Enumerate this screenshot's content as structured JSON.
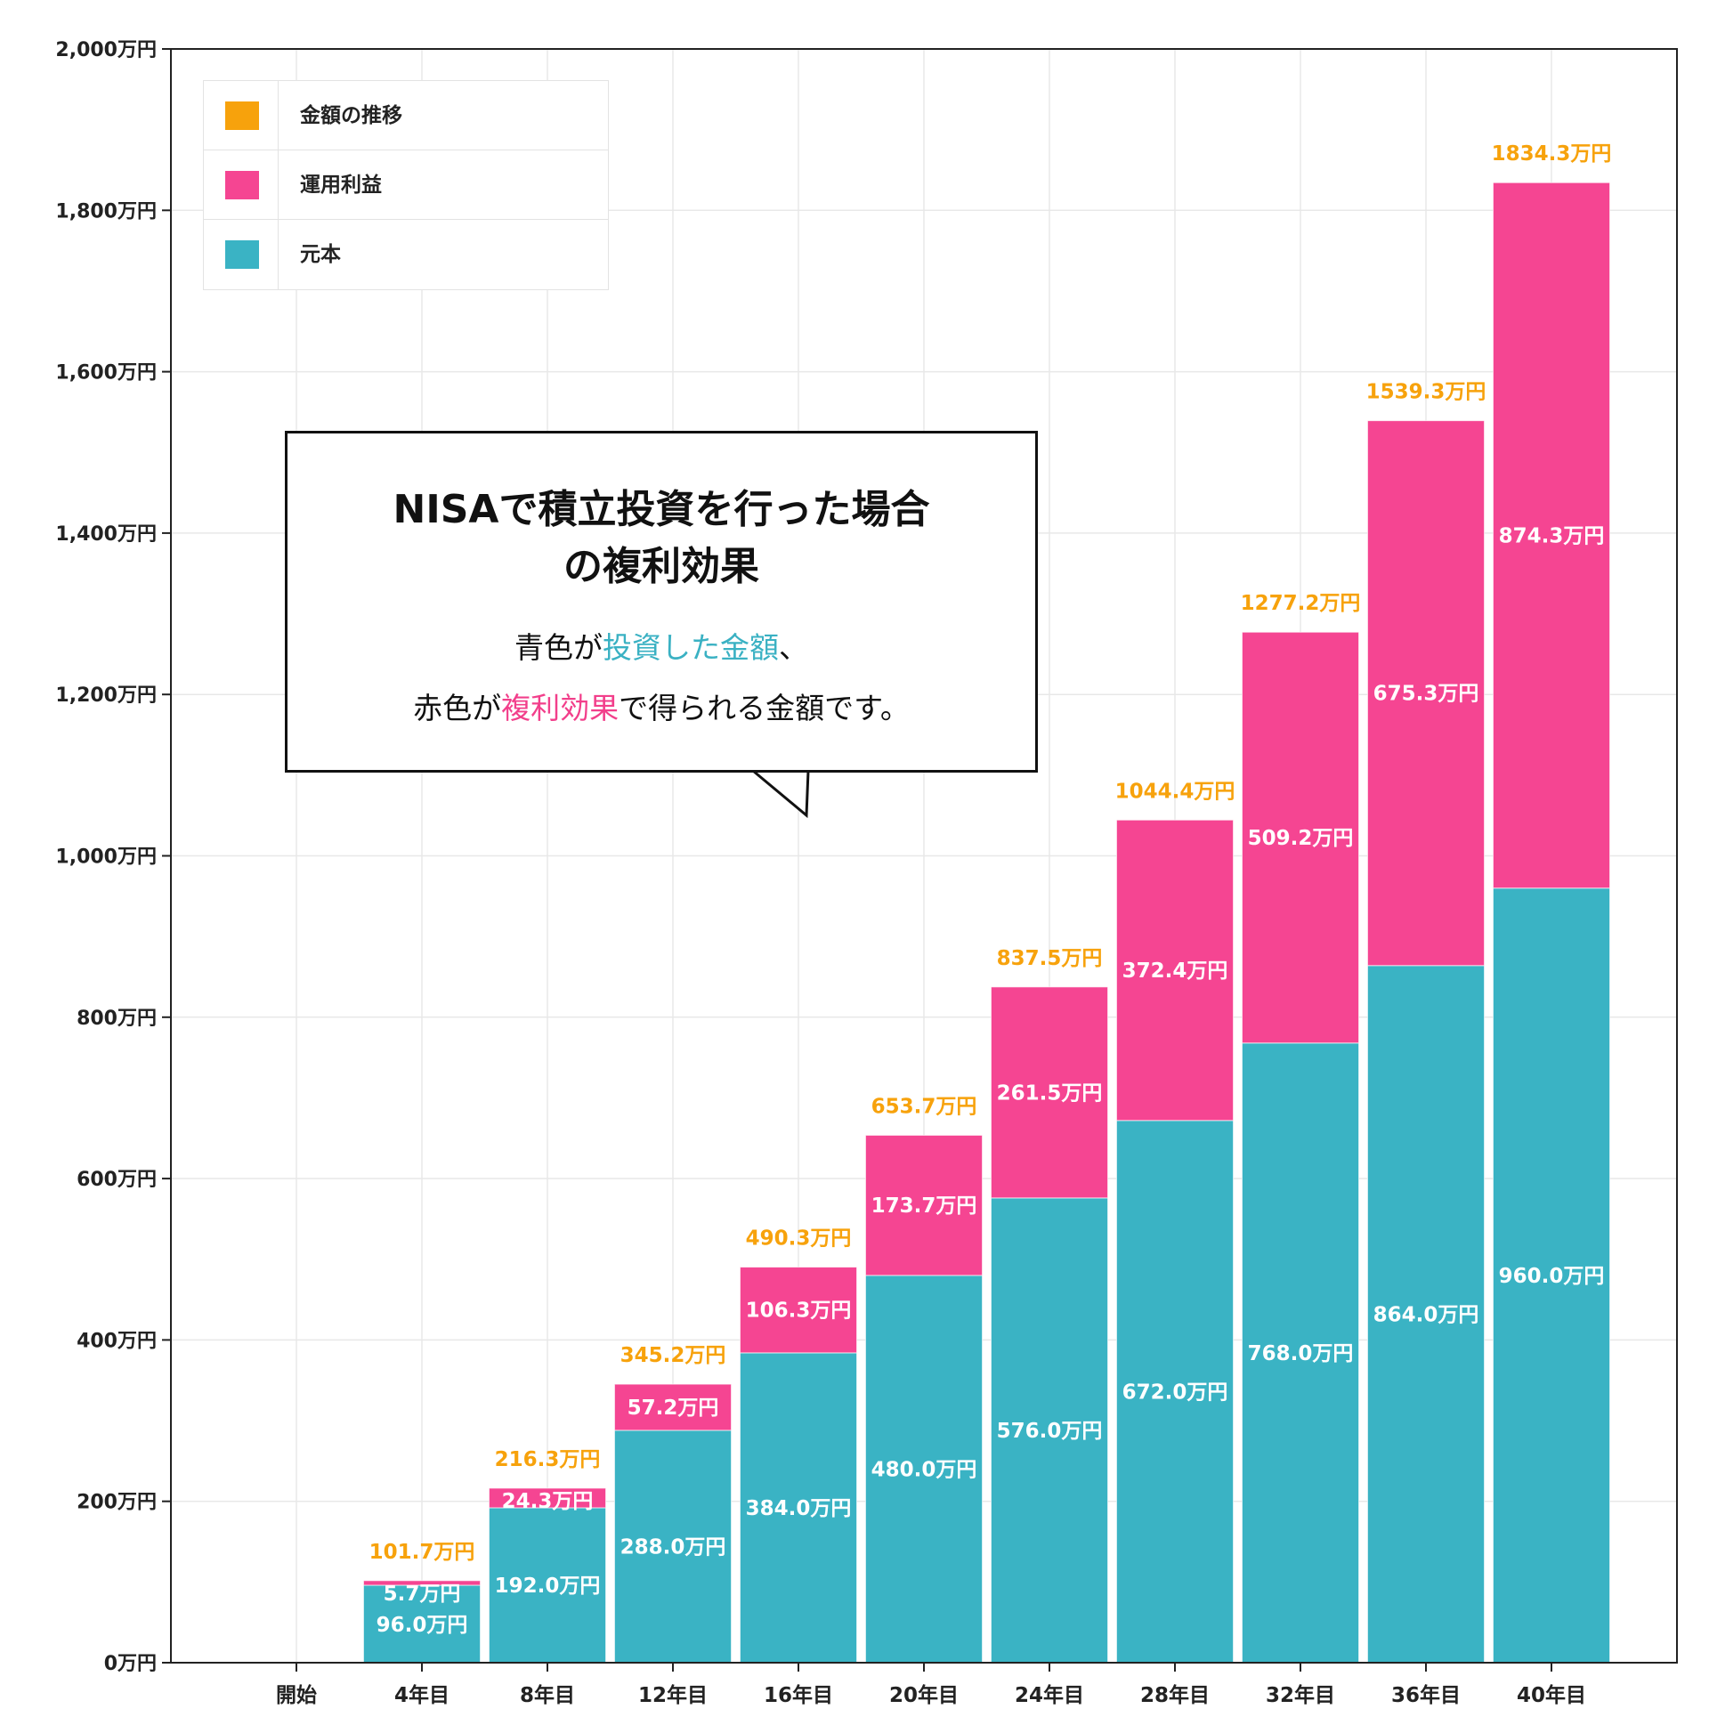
{
  "chart_data": {
    "type": "bar",
    "stacked": true,
    "categories": [
      "開始",
      "4年目",
      "8年目",
      "12年目",
      "16年目",
      "20年目",
      "24年目",
      "28年目",
      "32年目",
      "36年目",
      "40年目"
    ],
    "series": [
      {
        "name": "元本",
        "color": "#3ab3c4",
        "values": [
          0,
          96.0,
          192.0,
          288.0,
          384.0,
          480.0,
          576.0,
          672.0,
          768.0,
          864.0,
          960.0
        ],
        "labels": [
          "",
          "96.0万円",
          "192.0万円",
          "288.0万円",
          "384.0万円",
          "480.0万円",
          "576.0万円",
          "672.0万円",
          "768.0万円",
          "864.0万円",
          "960.0万円"
        ]
      },
      {
        "name": "運用利益",
        "color": "#f54592",
        "values": [
          0,
          5.7,
          24.3,
          57.2,
          106.3,
          173.7,
          261.5,
          372.4,
          509.2,
          675.3,
          874.3
        ],
        "labels": [
          "",
          "5.7万円",
          "24.3万円",
          "57.2万円",
          "106.3万円",
          "173.7万円",
          "261.5万円",
          "372.4万円",
          "509.2万円",
          "675.3万円",
          "874.3万円"
        ]
      }
    ],
    "totals": {
      "name": "金額の推移",
      "color": "#f7a20c",
      "values": [
        0,
        101.7,
        216.3,
        345.2,
        490.3,
        653.7,
        837.5,
        1044.4,
        1277.2,
        1539.3,
        1834.3
      ],
      "labels": [
        "",
        "101.7万円",
        "216.3万円",
        "345.2万円",
        "490.3万円",
        "653.7万円",
        "837.5万円",
        "1044.4万円",
        "1277.2万円",
        "1539.3万円",
        "1834.3万円"
      ]
    },
    "ylim": [
      0,
      2000
    ],
    "yticks": [
      0,
      200,
      400,
      600,
      800,
      1000,
      1200,
      1400,
      1600,
      1800,
      2000
    ],
    "ytick_labels": [
      "0万円",
      "200万円",
      "400万円",
      "600万円",
      "800万円",
      "1,000万円",
      "1,200万円",
      "1,400万円",
      "1,600万円",
      "1,800万円",
      "2,000万円"
    ],
    "grid": true,
    "legend_position": "top-left",
    "legend": [
      {
        "label": "金額の推移",
        "color": "#f7a20c"
      },
      {
        "label": "運用利益",
        "color": "#f54592"
      },
      {
        "label": "元本",
        "color": "#3ab3c4"
      }
    ]
  },
  "callout": {
    "title_line1": "NISAで積立投資を行った場合",
    "title_line2": "の複利効果",
    "line1_a": "青色が",
    "line1_b": "投資した金額",
    "line1_c": "、",
    "line2_a": "赤色が",
    "line2_b": "複利効果",
    "line2_c": "で得られる金額です。"
  }
}
